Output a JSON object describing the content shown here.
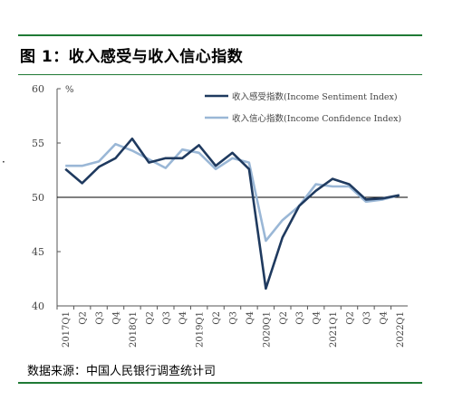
{
  "figure": {
    "title": "图 1：收入感受与收入信心指数",
    "source": "数据来源：中国人民银行调查统计司"
  },
  "chart_data": {
    "type": "line",
    "unit_label": "%",
    "x": [
      "2017Q1",
      "Q2",
      "Q3",
      "Q4",
      "2018Q1",
      "Q2",
      "Q3",
      "Q4",
      "2019Q1",
      "Q2",
      "Q3",
      "Q4",
      "2020Q1",
      "Q2",
      "Q3",
      "Q4",
      "2021Q1",
      "Q2",
      "Q3",
      "Q4",
      "2022Q1"
    ],
    "ylim": [
      40,
      60
    ],
    "yticks": [
      40,
      45,
      50,
      55,
      60
    ],
    "legend_position": "top-right",
    "reference_line": 50,
    "series": [
      {
        "name": "收入感受指数(Income Sentiment Index)",
        "color": "#1f3a5f",
        "values": [
          52.6,
          51.3,
          52.8,
          53.6,
          55.4,
          53.2,
          53.6,
          53.6,
          54.8,
          52.9,
          54.1,
          52.6,
          41.6,
          46.3,
          49.2,
          50.6,
          51.7,
          51.2,
          49.8,
          49.9,
          50.2
        ]
      },
      {
        "name": "收入信心指数(Income Confidence Index)",
        "color": "#9ab7d6",
        "values": [
          52.9,
          52.9,
          53.3,
          54.9,
          54.3,
          53.5,
          52.7,
          54.4,
          54.1,
          52.6,
          53.6,
          53.2,
          46.0,
          47.9,
          49.2,
          51.2,
          51.0,
          51.0,
          49.6,
          49.8,
          50.2
        ]
      }
    ]
  },
  "side_mark": "·"
}
